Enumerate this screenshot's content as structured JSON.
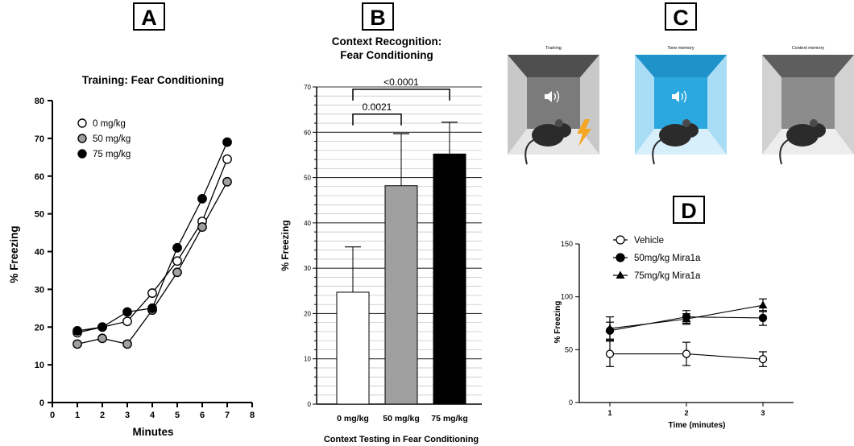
{
  "panels": {
    "a": "A",
    "b": "B",
    "c": "C",
    "d": "D"
  },
  "colors": {
    "open": "#ffffff",
    "grey": "#a0a0a0",
    "black": "#000000",
    "c_gray_wall": "#8a8a8a",
    "c_blue_wall": "#5cc3ec",
    "c_bolt": "#f5a623"
  },
  "panel_c": {
    "labels": [
      "Training",
      "Tone memory",
      "Context memory"
    ],
    "icons": [
      "speaker-icon",
      "mouse-icon",
      "lightning-bolt-icon"
    ]
  },
  "chart_data": [
    {
      "id": "A",
      "type": "line",
      "title": "Training: Fear Conditioning",
      "xlabel": "Minutes",
      "ylabel": "% Freezing",
      "xlim": [
        0,
        8
      ],
      "ylim": [
        0,
        80
      ],
      "xticks": [
        0,
        1,
        2,
        3,
        4,
        5,
        6,
        7,
        8
      ],
      "yticks": [
        0,
        10,
        20,
        30,
        40,
        50,
        60,
        70,
        80
      ],
      "x": [
        1,
        2,
        3,
        4,
        5,
        6,
        7
      ],
      "legend_position": "top-left",
      "series": [
        {
          "name": "0 mg/kg",
          "marker": "open",
          "values": [
            18.5,
            20,
            21.5,
            29,
            37.5,
            48,
            64.5
          ]
        },
        {
          "name": "50 mg/kg",
          "marker": "grey",
          "values": [
            15.5,
            17,
            15.5,
            24.5,
            34.5,
            46.5,
            58.5
          ]
        },
        {
          "name": "75 mg/kg",
          "marker": "black",
          "values": [
            19,
            20,
            24,
            25,
            41,
            54,
            69
          ]
        }
      ]
    },
    {
      "id": "B",
      "type": "bar",
      "title": "Context Recognition:",
      "subtitle": "Fear Conditioning",
      "xlabel": "Context Testing in Fear Conditioning",
      "ylabel": "% Freezing",
      "ylim": [
        0,
        70
      ],
      "yticks": [
        0,
        10,
        20,
        30,
        40,
        50,
        60,
        70
      ],
      "grid": true,
      "categories": [
        "0 mg/kg",
        "50 mg/kg",
        "75 mg/kg"
      ],
      "values": [
        24.7,
        48.2,
        55.2
      ],
      "errors": [
        10,
        11.5,
        7
      ],
      "bar_colors": [
        "open",
        "grey",
        "black"
      ],
      "annotations": [
        {
          "text": "0.0021",
          "from": 0,
          "to": 1,
          "y": 64
        },
        {
          "text": "<0.0001",
          "from": 0,
          "to": 2,
          "y": 69.5
        }
      ]
    },
    {
      "id": "D",
      "type": "line",
      "xlabel": "Time (minutes)",
      "ylabel": "% Freezing",
      "xlim": [
        0.6,
        3.4
      ],
      "ylim": [
        0,
        150
      ],
      "xticks": [
        1,
        2,
        3
      ],
      "yticks": [
        0,
        50,
        100,
        150
      ],
      "x": [
        1,
        2,
        3
      ],
      "legend_position": "top-left",
      "series": [
        {
          "name": "Vehicle",
          "marker": "open-circle",
          "values": [
            46,
            46,
            41
          ],
          "errors": [
            12,
            11,
            7
          ]
        },
        {
          "name": "50mg/kg Mira1a",
          "marker": "filled-circle",
          "values": [
            68,
            81,
            80
          ],
          "errors": [
            8,
            6,
            7
          ]
        },
        {
          "name": "75mg/kg Mira1a",
          "marker": "filled-triangle",
          "values": [
            70,
            79,
            92
          ],
          "errors": [
            11,
            5,
            6
          ]
        }
      ]
    }
  ]
}
